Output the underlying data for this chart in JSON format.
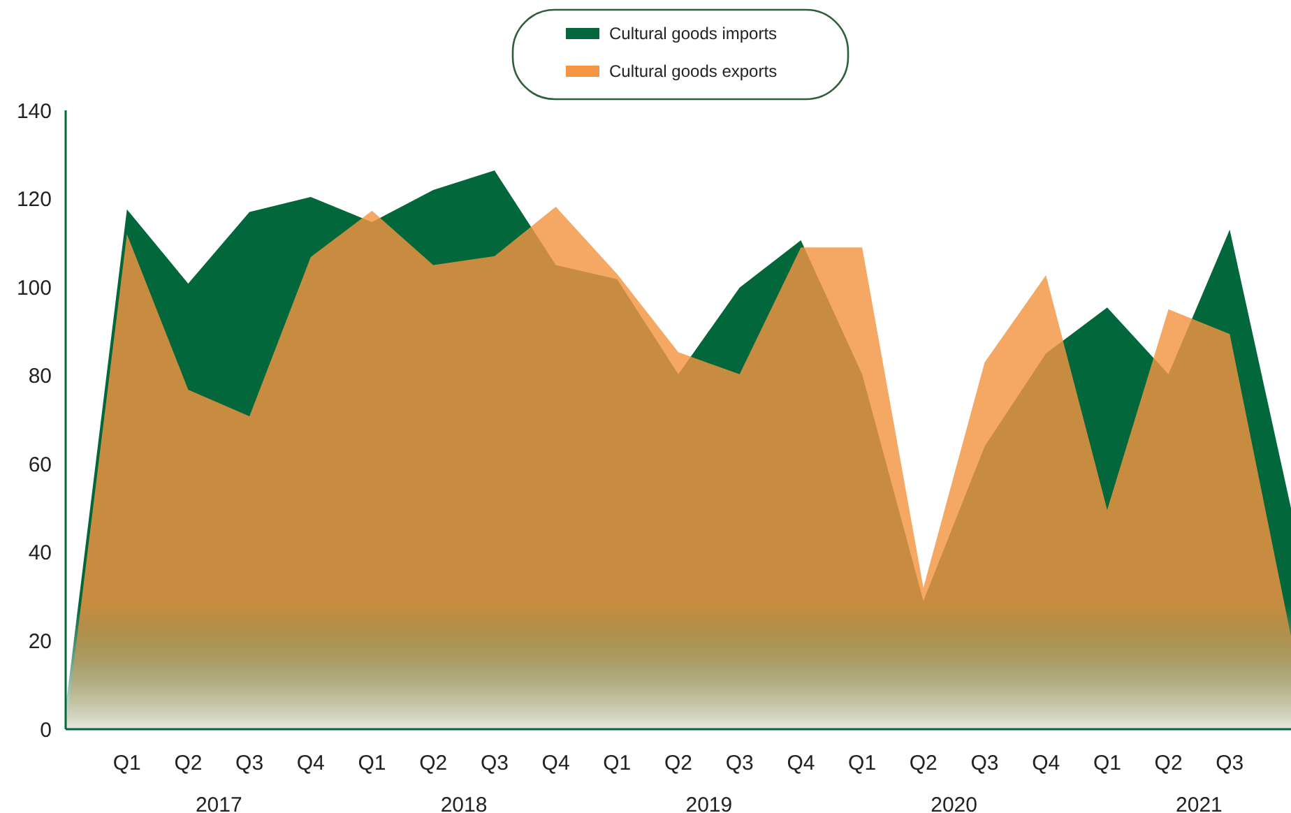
{
  "chart_data": {
    "type": "area",
    "categories": [
      null,
      "Q1",
      "Q2",
      "Q3",
      "Q4",
      "Q1",
      "Q2",
      "Q3",
      "Q4",
      "Q1",
      "Q2",
      "Q3",
      "Q4",
      "Q1",
      "Q2",
      "Q3",
      "Q4",
      "Q1",
      "Q2",
      "Q3",
      null
    ],
    "series": [
      {
        "name": "Cultural goods imports",
        "color": "#02673a",
        "values": [
          5,
          117.6,
          100.8,
          117,
          120.4,
          114.7,
          122,
          126.4,
          105,
          101.8,
          80.3,
          99.9,
          110.6,
          80.3,
          29,
          64,
          85,
          95.4,
          80.3,
          113,
          50
        ]
      },
      {
        "name": "Cultural goods exports",
        "color": "#f39542",
        "values": [
          0,
          112,
          76.8,
          70.8,
          106.8,
          117.3,
          105,
          107,
          118.2,
          103,
          85.3,
          80.3,
          109,
          109,
          32,
          83,
          102.7,
          49.6,
          95,
          89.4,
          21
        ]
      }
    ],
    "ylim": [
      0,
      140
    ],
    "yticks": [
      0,
      20,
      40,
      60,
      80,
      100,
      120,
      140
    ],
    "annotations": [
      "2017",
      "2018",
      "2019",
      "2020",
      "2021"
    ],
    "legend": "top",
    "grid": false
  }
}
